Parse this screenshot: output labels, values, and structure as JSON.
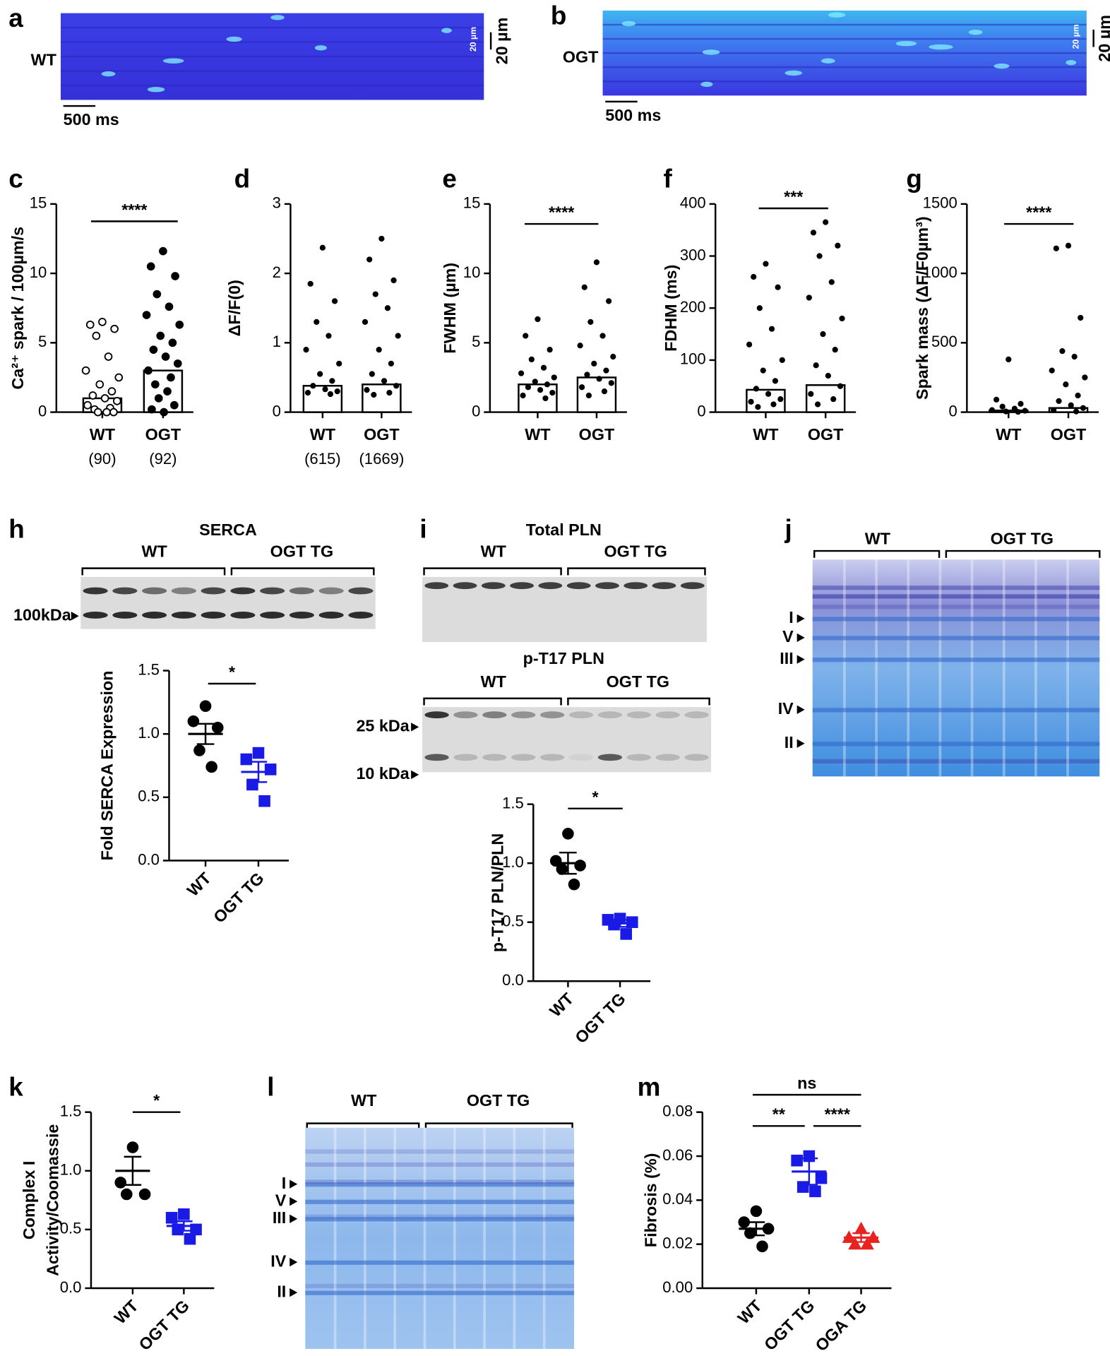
{
  "images": {
    "a": {
      "panel": "a",
      "label": "WT",
      "time_scale": "500 ms",
      "space_scale": "20 µm",
      "inset_scale": "20 µm"
    },
    "b": {
      "panel": "b",
      "label": "OGT",
      "time_scale": "500 ms",
      "space_scale": "20 µm",
      "inset_scale": "20 µm"
    }
  },
  "blots": {
    "h": {
      "panel": "h",
      "title": "SERCA",
      "groups": [
        "WT",
        "OGT TG"
      ],
      "markers": [
        "100kDa"
      ]
    },
    "i": {
      "panel": "i",
      "blots": [
        {
          "title": "Total PLN",
          "groups": [
            "WT",
            "OGT TG"
          ]
        },
        {
          "title": "p-T17 PLN",
          "groups": [
            "WT",
            "OGT TG"
          ],
          "markers": [
            "25 kDa",
            "10 kDa"
          ]
        }
      ]
    },
    "j": {
      "panel": "j",
      "groups": [
        "WT",
        "OGT TG"
      ],
      "bands": [
        "I",
        "V",
        "III",
        "IV",
        "II"
      ]
    },
    "l": {
      "panel": "l",
      "groups": [
        "WT",
        "OGT TG"
      ],
      "bands": [
        "I",
        "V",
        "III",
        "IV",
        "II"
      ]
    }
  },
  "chart_data": [
    {
      "type": "bar",
      "panel": "c",
      "ylabel": "Ca²⁺ spark / 100µm/s",
      "categories": [
        "WT",
        "OGT"
      ],
      "n_labels": [
        "(90)",
        "(92)"
      ],
      "values": [
        1.0,
        3.0
      ],
      "points": [
        [
          6.5,
          6.3,
          6.0,
          5.5,
          4.0,
          3.0,
          2.5,
          2.0,
          1.5,
          1.2,
          1.0,
          0.8,
          0.5,
          0.3,
          0.2,
          0,
          0,
          0
        ],
        [
          11.6,
          10.5,
          9.8,
          8.5,
          7.6,
          7.0,
          6.3,
          5.5,
          5.0,
          4.5,
          4.0,
          3.5,
          3.0,
          2.5,
          2.0,
          1.5,
          1.0,
          0.5,
          0.2,
          0
        ]
      ],
      "colors": [
        "#000000",
        "#000000"
      ],
      "markers": [
        "circle",
        "circle"
      ],
      "filled": [
        false,
        true
      ],
      "ylim": [
        0,
        15
      ],
      "yticks": [
        0,
        5,
        10,
        15
      ],
      "significance": [
        "****"
      ]
    },
    {
      "type": "bar",
      "panel": "d",
      "ylabel": "ΔF/F(0)",
      "categories": [
        "WT",
        "OGT"
      ],
      "n_labels": [
        "(615)",
        "(1669)"
      ],
      "values": [
        0.38,
        0.4
      ],
      "points": [
        [
          2.37,
          1.85,
          1.6,
          1.3,
          1.1,
          0.9,
          0.7,
          0.55,
          0.45,
          0.38,
          0.33,
          0.3,
          0.28,
          0.26
        ],
        [
          2.5,
          2.2,
          1.9,
          1.7,
          1.5,
          1.3,
          1.1,
          0.9,
          0.7,
          0.55,
          0.45,
          0.38,
          0.32,
          0.28,
          0.25
        ]
      ],
      "colors": [
        "#000000",
        "#000000"
      ],
      "markers": [
        "circle",
        "circle"
      ],
      "filled": [
        true,
        true
      ],
      "ylim": [
        0,
        3
      ],
      "yticks": [
        0,
        1,
        2,
        3
      ],
      "significance": []
    },
    {
      "type": "bar",
      "panel": "e",
      "ylabel": "FWHM (µm)",
      "categories": [
        "WT",
        "OGT"
      ],
      "values": [
        2.0,
        2.5
      ],
      "points": [
        [
          6.7,
          5.5,
          4.5,
          3.8,
          3.2,
          2.8,
          2.5,
          2.2,
          2.0,
          1.8,
          1.6,
          1.4,
          1.2,
          1.0
        ],
        [
          10.8,
          9.0,
          8.0,
          6.5,
          5.5,
          4.8,
          4.0,
          3.5,
          3.0,
          2.7,
          2.4,
          2.1,
          1.8,
          1.5,
          1.2
        ]
      ],
      "colors": [
        "#000000",
        "#000000"
      ],
      "markers": [
        "circle",
        "circle"
      ],
      "filled": [
        true,
        true
      ],
      "ylim": [
        0,
        15
      ],
      "yticks": [
        0,
        5,
        10,
        15
      ],
      "significance": [
        "****"
      ]
    },
    {
      "type": "bar",
      "panel": "f",
      "ylabel": "FDHM (ms)",
      "categories": [
        "WT",
        "OGT"
      ],
      "values": [
        43,
        52
      ],
      "points": [
        [
          285,
          260,
          240,
          200,
          160,
          130,
          100,
          80,
          60,
          45,
          35,
          25,
          20,
          15,
          10
        ],
        [
          365,
          345,
          320,
          300,
          250,
          220,
          180,
          150,
          120,
          90,
          70,
          50,
          35,
          25,
          15
        ]
      ],
      "colors": [
        "#000000",
        "#000000"
      ],
      "markers": [
        "circle",
        "circle"
      ],
      "filled": [
        true,
        true
      ],
      "ylim": [
        0,
        400
      ],
      "yticks": [
        0,
        100,
        200,
        300,
        400
      ],
      "significance": [
        "***"
      ]
    },
    {
      "type": "bar",
      "panel": "g",
      "ylabel": "Spark mass (ΔF/F0µm³)",
      "categories": [
        "WT",
        "OGT"
      ],
      "values": [
        12,
        30
      ],
      "points": [
        [
          380,
          90,
          60,
          40,
          25,
          15,
          10,
          5,
          2
        ],
        [
          1200,
          1180,
          680,
          440,
          400,
          300,
          250,
          200,
          120,
          80,
          50,
          30,
          15,
          5
        ]
      ],
      "colors": [
        "#000000",
        "#000000"
      ],
      "markers": [
        "circle",
        "circle"
      ],
      "filled": [
        true,
        true
      ],
      "ylim": [
        0,
        1500
      ],
      "yticks": [
        0,
        500,
        1000,
        1500
      ],
      "significance": [
        "****"
      ]
    },
    {
      "type": "dot",
      "ylabel": "Fold SERCA Expression",
      "categories": [
        "WT",
        "OGT TG"
      ],
      "points": [
        [
          1.22,
          1.1,
          1.05,
          0.87,
          0.74
        ],
        [
          0.85,
          0.8,
          0.72,
          0.6,
          0.47
        ]
      ],
      "means": [
        1.0,
        0.7
      ],
      "sems": [
        0.08,
        0.08
      ],
      "colors": [
        "#000000",
        "#1a1ae6"
      ],
      "markers": [
        "circle",
        "square"
      ],
      "filled": [
        true,
        true
      ],
      "ylim": [
        0,
        1.5
      ],
      "yticks": [
        {
          "value": 0,
          "label": "0.0"
        },
        0.5,
        {
          "value": 1,
          "label": "1.0"
        },
        1.5
      ],
      "significance": [
        "*"
      ]
    },
    {
      "type": "dot",
      "ylabel": "p-T17 PLN/PLN",
      "categories": [
        "WT",
        "OGT TG"
      ],
      "points": [
        [
          1.25,
          1.02,
          0.98,
          0.95,
          0.82
        ],
        [
          0.53,
          0.52,
          0.5,
          0.48,
          0.4
        ]
      ],
      "means": [
        1.0,
        0.49
      ],
      "sems": [
        0.09,
        0.03
      ],
      "colors": [
        "#000000",
        "#1a1ae6"
      ],
      "markers": [
        "circle",
        "square"
      ],
      "filled": [
        true,
        true
      ],
      "ylim": [
        0,
        1.5
      ],
      "yticks": [
        {
          "value": 0,
          "label": "0.0"
        },
        0.5,
        {
          "value": 1,
          "label": "1.0"
        },
        1.5
      ],
      "significance": [
        "*"
      ]
    },
    {
      "type": "dot",
      "panel": "k",
      "ylabel": [
        "Complex I",
        "Activity/Coomassie"
      ],
      "categories": [
        "WT",
        "OGT TG"
      ],
      "points": [
        [
          1.2,
          0.9,
          0.8,
          0.8
        ],
        [
          0.63,
          0.6,
          0.5,
          0.5,
          0.42
        ]
      ],
      "means": [
        1.0,
        0.53
      ],
      "sems": [
        0.12,
        0.04
      ],
      "colors": [
        "#000000",
        "#1a1ae6"
      ],
      "markers": [
        "circle",
        "square"
      ],
      "filled": [
        true,
        true
      ],
      "ylim": [
        0,
        1.5
      ],
      "yticks": [
        {
          "value": 0,
          "label": "0.0"
        },
        0.5,
        {
          "value": 1,
          "label": "1.0"
        },
        1.5
      ],
      "significance": [
        "*"
      ]
    },
    {
      "type": "dot",
      "panel": "m",
      "ylabel": "Fibrosis (%)",
      "categories": [
        "WT",
        "OGT TG",
        "OGA TG"
      ],
      "points": [
        [
          0.035,
          0.03,
          0.027,
          0.025,
          0.019
        ],
        [
          0.06,
          0.058,
          0.05,
          0.046,
          0.044
        ],
        [
          0.027,
          0.023,
          0.023,
          0.02,
          0.02
        ]
      ],
      "means": [
        0.027,
        0.053,
        0.023
      ],
      "sems": [
        0.003,
        0.006,
        0.002
      ],
      "colors": [
        "#000000",
        "#1a1ae6",
        "#e8221e"
      ],
      "markers": [
        "circle",
        "square",
        "triangle"
      ],
      "filled": [
        true,
        true,
        true
      ],
      "ylim": [
        0,
        0.08
      ],
      "yticks": [
        {
          "value": 0,
          "label": "0.00"
        },
        0.02,
        0.04,
        0.06,
        0.08
      ],
      "significance": [
        "ns",
        "**",
        "****"
      ]
    }
  ]
}
